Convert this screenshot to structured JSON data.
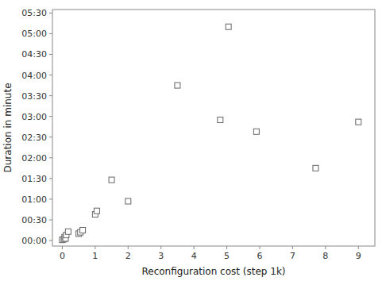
{
  "chart_data": {
    "type": "scatter",
    "xlabel": "Reconfiguration cost (step 1k)",
    "ylabel": "Duration in minute",
    "x": [
      0.0,
      0.05,
      0.07,
      0.1,
      0.12,
      0.18,
      0.5,
      0.55,
      0.62,
      1.0,
      1.05,
      1.5,
      2.0,
      3.5,
      4.8,
      5.05,
      5.9,
      7.7,
      9.0
    ],
    "values": [
      1,
      2,
      5,
      3,
      8,
      13,
      10,
      12,
      15,
      38,
      43,
      88,
      57,
      225,
      175,
      310,
      158,
      105,
      172
    ],
    "xlim": [
      -0.3,
      9.5
    ],
    "ylim": [
      -8,
      335
    ],
    "xticks": [
      0,
      1,
      2,
      3,
      4,
      5,
      6,
      7,
      8,
      9
    ],
    "yticks": [
      {
        "value": 0,
        "label": "00:00"
      },
      {
        "value": 30,
        "label": "00:30"
      },
      {
        "value": 60,
        "label": "01:00"
      },
      {
        "value": 90,
        "label": "01:30"
      },
      {
        "value": 120,
        "label": "02:00"
      },
      {
        "value": 150,
        "label": "02:30"
      },
      {
        "value": 180,
        "label": "03:00"
      },
      {
        "value": 210,
        "label": "03:30"
      },
      {
        "value": 240,
        "label": "04:00"
      },
      {
        "value": 270,
        "label": "04:30"
      },
      {
        "value": 300,
        "label": "05:00"
      },
      {
        "value": 330,
        "label": "05:30"
      }
    ],
    "marker": "square",
    "color": "#666666",
    "grid": false
  }
}
